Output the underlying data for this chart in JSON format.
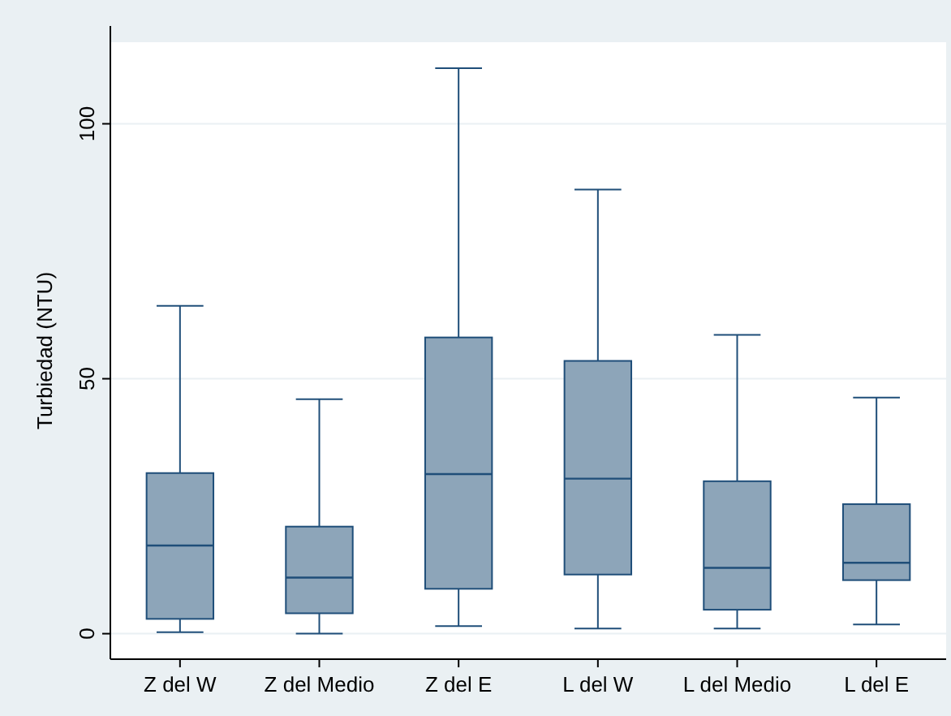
{
  "chart_data": {
    "type": "box",
    "ylabel": "Turbiedad (NTU)",
    "categories": [
      "Z del W",
      "Z del Medio",
      "Z del E",
      "L del W",
      "L del Medio",
      "L del E"
    ],
    "boxes": [
      {
        "low": 0.3,
        "q1": 2.9,
        "median": 17.3,
        "q3": 31.5,
        "high": 64.3
      },
      {
        "low": 0,
        "q1": 4,
        "median": 11,
        "q3": 21,
        "high": 46
      },
      {
        "low": 1.5,
        "q1": 8.8,
        "median": 31.3,
        "q3": 58.1,
        "high": 110.9
      },
      {
        "low": 1,
        "q1": 11.6,
        "median": 30.4,
        "q3": 53.5,
        "high": 87.1
      },
      {
        "low": 1,
        "q1": 4.7,
        "median": 12.9,
        "q3": 29.9,
        "high": 58.6
      },
      {
        "low": 1.8,
        "q1": 10.5,
        "median": 13.9,
        "q3": 25.4,
        "high": 46.3
      }
    ],
    "color": "#8da5b9",
    "ylim": [
      -5,
      116
    ],
    "yticks": [
      0,
      50,
      100
    ],
    "grid": "y"
  }
}
